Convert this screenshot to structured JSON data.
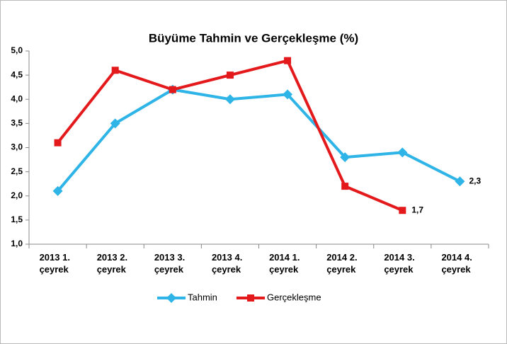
{
  "chart_data": {
    "type": "line",
    "title": "Büyüme Tahmin ve Gerçekleşme (%)",
    "categories": [
      "2013 1. çeyrek",
      "2013 2. çeyrek",
      "2013 3. çeyrek",
      "2013 4. çeyrek",
      "2014 1. çeyrek",
      "2014 2. çeyrek",
      "2014 3. çeyrek",
      "2014 4. çeyrek"
    ],
    "series": [
      {
        "name": "Tahmin",
        "color": "#2eb4e6",
        "marker": "diamond",
        "values": [
          2.1,
          3.5,
          4.2,
          4.0,
          4.1,
          2.8,
          2.9,
          2.3
        ],
        "value_labels": [
          null,
          null,
          null,
          null,
          null,
          null,
          null,
          "2,3"
        ]
      },
      {
        "name": "Gerçekleşme",
        "color": "#e3191c",
        "marker": "square",
        "values": [
          3.1,
          4.6,
          4.2,
          4.5,
          4.8,
          2.2,
          1.7,
          null
        ],
        "value_labels": [
          null,
          null,
          null,
          null,
          null,
          null,
          "1,7",
          null
        ]
      }
    ],
    "ylim": [
      1.0,
      5.0
    ],
    "yticks": [
      {
        "value": 1.0,
        "label": "1,0"
      },
      {
        "value": 1.5,
        "label": "1,5"
      },
      {
        "value": 2.0,
        "label": "2,0"
      },
      {
        "value": 2.5,
        "label": "2,5"
      },
      {
        "value": 3.0,
        "label": "3,0"
      },
      {
        "value": 3.5,
        "label": "3,5"
      },
      {
        "value": 4.0,
        "label": "4,0"
      },
      {
        "value": 4.5,
        "label": "4,5"
      },
      {
        "value": 5.0,
        "label": "5,0"
      }
    ],
    "grid": false,
    "legend": "bottom"
  }
}
